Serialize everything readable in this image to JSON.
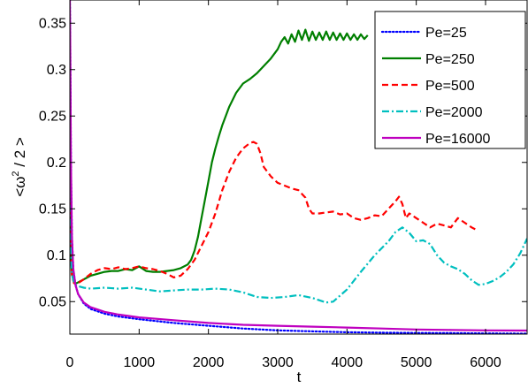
{
  "chart_data": {
    "type": "line",
    "title": "",
    "xlabel": "t",
    "ylabel": "<ω² / 2 >",
    "ylabel_parts": {
      "pre": "<ω",
      "sup": "2",
      "post": " / 2 >"
    },
    "xlim": [
      0,
      6600
    ],
    "ylim": [
      0.015,
      0.375
    ],
    "xticks": [
      0,
      1000,
      2000,
      3000,
      4000,
      5000,
      6000
    ],
    "yticks": [
      0.05,
      0.1,
      0.15,
      0.2,
      0.25,
      0.3,
      0.35
    ],
    "grid": false,
    "legend_position": "top-right",
    "series": [
      {
        "name": "Pe=25",
        "color": "#0000ff",
        "dash": "dotted",
        "x": [
          0,
          5,
          15,
          30,
          50,
          80,
          120,
          200,
          300,
          500,
          700,
          1000,
          1500,
          2000,
          2500,
          3000,
          3500,
          4000,
          4500,
          5000,
          5500,
          6000,
          6600
        ],
        "y": [
          0.375,
          0.33,
          0.2,
          0.12,
          0.085,
          0.068,
          0.058,
          0.048,
          0.042,
          0.037,
          0.034,
          0.031,
          0.027,
          0.024,
          0.021,
          0.019,
          0.018,
          0.017,
          0.0165,
          0.0162,
          0.016,
          0.0158,
          0.0155
        ]
      },
      {
        "name": "Pe=250",
        "color": "#007f00",
        "dash": "solid",
        "x": [
          0,
          5,
          15,
          30,
          60,
          100,
          200,
          300,
          400,
          500,
          600,
          700,
          800,
          900,
          1000,
          1100,
          1200,
          1300,
          1400,
          1500,
          1600,
          1700,
          1750,
          1800,
          1850,
          1900,
          1950,
          2000,
          2050,
          2100,
          2150,
          2200,
          2300,
          2400,
          2500,
          2600,
          2700,
          2800,
          2900,
          3000,
          3050,
          3100,
          3150,
          3200,
          3250,
          3300,
          3350,
          3400,
          3450,
          3500,
          3550,
          3600,
          3650,
          3700,
          3750,
          3800,
          3850,
          3900,
          3950,
          4000,
          4050,
          4100,
          4150,
          4200,
          4250,
          4300
        ],
        "y": [
          0.2,
          0.15,
          0.1,
          0.08,
          0.07,
          0.07,
          0.074,
          0.078,
          0.08,
          0.082,
          0.083,
          0.083,
          0.085,
          0.084,
          0.088,
          0.083,
          0.082,
          0.082,
          0.083,
          0.084,
          0.086,
          0.09,
          0.095,
          0.105,
          0.12,
          0.14,
          0.16,
          0.18,
          0.2,
          0.215,
          0.228,
          0.24,
          0.26,
          0.275,
          0.285,
          0.29,
          0.296,
          0.304,
          0.312,
          0.322,
          0.33,
          0.335,
          0.328,
          0.338,
          0.33,
          0.342,
          0.332,
          0.343,
          0.331,
          0.341,
          0.332,
          0.34,
          0.332,
          0.341,
          0.332,
          0.34,
          0.332,
          0.339,
          0.332,
          0.339,
          0.332,
          0.338,
          0.332,
          0.338,
          0.333,
          0.337
        ]
      },
      {
        "name": "Pe=500",
        "color": "#ff0000",
        "dash": "dashed",
        "x": [
          0,
          5,
          15,
          30,
          60,
          100,
          200,
          300,
          400,
          500,
          600,
          700,
          800,
          900,
          1000,
          1100,
          1200,
          1300,
          1400,
          1500,
          1600,
          1700,
          1800,
          1900,
          2000,
          2100,
          2200,
          2300,
          2400,
          2500,
          2600,
          2650,
          2700,
          2750,
          2800,
          2900,
          3000,
          3100,
          3200,
          3300,
          3400,
          3450,
          3500,
          3600,
          3700,
          3800,
          3900,
          4000,
          4100,
          4200,
          4300,
          4400,
          4500,
          4600,
          4700,
          4750,
          4800,
          4850,
          4900,
          5000,
          5100,
          5200,
          5300,
          5400,
          5500,
          5600,
          5700,
          5800,
          5850
        ],
        "y": [
          0.2,
          0.15,
          0.1,
          0.078,
          0.07,
          0.069,
          0.074,
          0.08,
          0.084,
          0.086,
          0.085,
          0.087,
          0.085,
          0.086,
          0.088,
          0.086,
          0.085,
          0.083,
          0.08,
          0.076,
          0.078,
          0.085,
          0.095,
          0.11,
          0.125,
          0.145,
          0.17,
          0.19,
          0.205,
          0.215,
          0.221,
          0.222,
          0.22,
          0.21,
          0.195,
          0.185,
          0.178,
          0.175,
          0.172,
          0.17,
          0.162,
          0.15,
          0.145,
          0.145,
          0.146,
          0.147,
          0.144,
          0.145,
          0.14,
          0.138,
          0.14,
          0.143,
          0.142,
          0.15,
          0.158,
          0.163,
          0.155,
          0.14,
          0.145,
          0.14,
          0.135,
          0.13,
          0.134,
          0.132,
          0.13,
          0.14,
          0.135,
          0.13,
          0.128
        ]
      },
      {
        "name": "Pe=2000",
        "color": "#00bfbf",
        "dash": "dashdot",
        "x": [
          0,
          5,
          15,
          30,
          60,
          100,
          200,
          300,
          500,
          700,
          900,
          1100,
          1300,
          1500,
          1700,
          1900,
          2100,
          2300,
          2500,
          2700,
          2900,
          3100,
          3300,
          3500,
          3700,
          3800,
          4000,
          4200,
          4400,
          4600,
          4700,
          4800,
          4900,
          5000,
          5100,
          5200,
          5300,
          5400,
          5500,
          5600,
          5700,
          5800,
          5900,
          6000,
          6100,
          6200,
          6300,
          6400,
          6500,
          6600
        ],
        "y": [
          0.2,
          0.15,
          0.1,
          0.08,
          0.07,
          0.067,
          0.065,
          0.064,
          0.065,
          0.064,
          0.065,
          0.063,
          0.061,
          0.062,
          0.063,
          0.063,
          0.064,
          0.063,
          0.06,
          0.055,
          0.054,
          0.055,
          0.057,
          0.054,
          0.049,
          0.05,
          0.063,
          0.082,
          0.1,
          0.115,
          0.125,
          0.13,
          0.124,
          0.115,
          0.116,
          0.112,
          0.1,
          0.092,
          0.088,
          0.085,
          0.08,
          0.073,
          0.068,
          0.069,
          0.072,
          0.076,
          0.082,
          0.09,
          0.102,
          0.118
        ]
      },
      {
        "name": "Pe=16000",
        "color": "#bf00bf",
        "dash": "solid",
        "x": [
          0,
          5,
          15,
          30,
          50,
          80,
          120,
          200,
          300,
          500,
          700,
          1000,
          1500,
          2000,
          2500,
          3000,
          3500,
          4000,
          4500,
          5000,
          5500,
          6000,
          6600
        ],
        "y": [
          0.375,
          0.33,
          0.2,
          0.12,
          0.085,
          0.068,
          0.058,
          0.049,
          0.044,
          0.039,
          0.036,
          0.033,
          0.03,
          0.027,
          0.025,
          0.024,
          0.023,
          0.022,
          0.021,
          0.02,
          0.0195,
          0.019,
          0.0188
        ]
      }
    ]
  }
}
